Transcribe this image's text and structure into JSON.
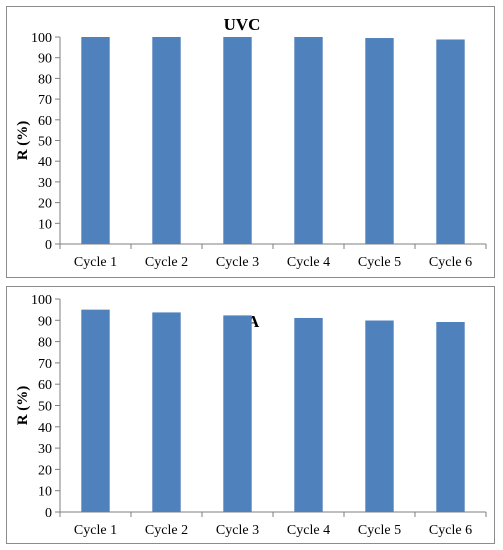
{
  "chart_data": [
    {
      "type": "bar",
      "title": "UVC",
      "xlabel": "",
      "ylabel": "R (%)",
      "categories": [
        "Cycle 1",
        "Cycle 2",
        "Cycle 3",
        "Cycle 4",
        "Cycle 5",
        "Cycle 6"
      ],
      "values": [
        100,
        100,
        100,
        100,
        99.5,
        98.8
      ],
      "ylim": [
        0,
        100
      ],
      "yticks": [
        0,
        10,
        20,
        30,
        40,
        50,
        60,
        70,
        80,
        90,
        100
      ],
      "bar_color": "#4f81bd",
      "grid": false,
      "legend": "none"
    },
    {
      "type": "bar",
      "title": "UVA",
      "xlabel": "",
      "ylabel": "R (%)",
      "categories": [
        "Cycle 1",
        "Cycle 2",
        "Cycle 3",
        "Cycle 4",
        "Cycle 5",
        "Cycle 6"
      ],
      "values": [
        95,
        93.7,
        92.3,
        91.1,
        89.9,
        89.2
      ],
      "ylim": [
        0,
        100
      ],
      "yticks": [
        0,
        10,
        20,
        30,
        40,
        50,
        60,
        70,
        80,
        90,
        100
      ],
      "bar_color": "#4f81bd",
      "grid": false,
      "legend": "none"
    }
  ]
}
